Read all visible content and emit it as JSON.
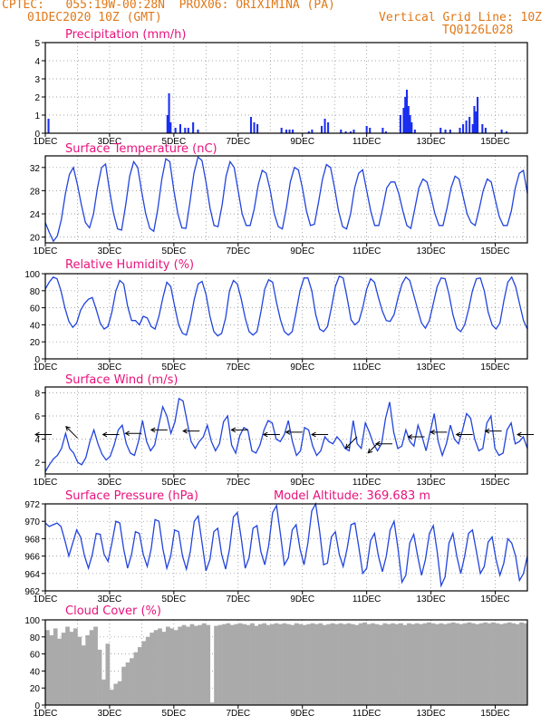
{
  "header": {
    "line1": "CPTEC:   055:19W-00:28N  PROX06: ORIXIMINA (PA)",
    "line2_left": "01DEC2020 10Z (GMT)",
    "line2_right": "Vertical Grid Line: 10Z",
    "line3_right": "TQ0126L028"
  },
  "colors": {
    "header": "#e07818",
    "title": "#e8127c",
    "line": "#2244dd",
    "bar": "#1a2ef0",
    "cloud": "#aaaaaa",
    "grid": "#888888"
  },
  "x_ticks": [
    "1DEC",
    "3DEC",
    "5DEC",
    "7DEC",
    "9DEC",
    "11DEC",
    "13DEC",
    "15DEC"
  ],
  "chart_data": [
    {
      "type": "bar",
      "title": "Precipitation (mm/h)",
      "ylim": [
        0,
        5
      ],
      "yticks": [
        0,
        1,
        2,
        3,
        4,
        5
      ],
      "series": [
        {
          "x": [
            0.1,
            3.8,
            3.85,
            3.9,
            4.05,
            4.2,
            4.35,
            4.45,
            4.6,
            4.75,
            6.4,
            6.5,
            6.6,
            7.35,
            7.5,
            7.6,
            7.7,
            8.2,
            8.3,
            8.6,
            8.7,
            8.8,
            9.2,
            9.35,
            9.5,
            9.6,
            10.0,
            10.1,
            10.5,
            10.6,
            11.05,
            11.15,
            11.2,
            11.25,
            11.3,
            11.35,
            11.4,
            11.5,
            12.3,
            12.45,
            12.6,
            12.9,
            13.0,
            13.1,
            13.2,
            13.3,
            13.35,
            13.4,
            13.45,
            13.6,
            13.7,
            14.2,
            14.35
          ],
          "values": [
            0.8,
            1.0,
            2.2,
            0.6,
            0.3,
            0.5,
            0.3,
            0.3,
            0.6,
            0.2,
            0.9,
            0.6,
            0.5,
            0.3,
            0.2,
            0.2,
            0.2,
            0.1,
            0.2,
            0.4,
            0.8,
            0.6,
            0.2,
            0.1,
            0.1,
            0.2,
            0.4,
            0.3,
            0.3,
            0.1,
            1.0,
            1.4,
            2.0,
            2.4,
            1.5,
            1.0,
            0.6,
            0.2,
            0.3,
            0.2,
            0.2,
            0.3,
            0.5,
            0.7,
            0.9,
            0.5,
            1.5,
            1.2,
            2.0,
            0.5,
            0.3,
            0.2,
            0.1
          ]
        }
      ]
    },
    {
      "type": "line",
      "title": "Surface Temperature (nC)",
      "ylim": [
        19,
        34
      ],
      "yticks": [
        20,
        24,
        28,
        32
      ],
      "series": [
        {
          "values": [
            22.5,
            20.8,
            19.3,
            20.2,
            23.0,
            27.5,
            30.8,
            32.0,
            29.0,
            25.5,
            22.5,
            21.6,
            24.0,
            28.5,
            32.0,
            32.6,
            28.0,
            24.0,
            21.4,
            21.2,
            25.5,
            30.5,
            33.0,
            32.0,
            27.8,
            24.0,
            21.5,
            21.0,
            24.8,
            30.0,
            33.5,
            33.0,
            28.0,
            24.0,
            21.6,
            21.5,
            26.0,
            31.0,
            33.8,
            33.2,
            29.5,
            25.0,
            22.0,
            21.8,
            25.5,
            30.5,
            33.0,
            32.0,
            28.0,
            24.0,
            22.0,
            22.0,
            24.8,
            29.0,
            31.5,
            31.0,
            28.0,
            24.0,
            21.8,
            21.4,
            25.0,
            29.5,
            32.0,
            31.6,
            28.5,
            24.5,
            22.0,
            22.2,
            26.0,
            30.0,
            32.5,
            32.0,
            28.5,
            24.5,
            21.8,
            21.4,
            24.0,
            28.5,
            31.0,
            31.6,
            28.0,
            24.5,
            22.0,
            22.0,
            25.0,
            28.5,
            29.5,
            29.5,
            27.5,
            24.5,
            22.0,
            21.5,
            25.0,
            28.5,
            30.0,
            29.5,
            27.0,
            24.0,
            22.0,
            22.0,
            25.0,
            28.5,
            30.5,
            30.0,
            27.0,
            24.0,
            22.5,
            22.0,
            24.8,
            28.0,
            30.0,
            29.5,
            26.5,
            23.5,
            22.0,
            22.0,
            24.5,
            28.5,
            31.0,
            31.5,
            27.5
          ]
        }
      ]
    },
    {
      "type": "line",
      "title": "Relative Humidity (%)",
      "ylim": [
        0,
        100
      ],
      "yticks": [
        0,
        20,
        40,
        60,
        80,
        100
      ],
      "series": [
        {
          "values": [
            82,
            90,
            96,
            94,
            80,
            60,
            44,
            37,
            42,
            57,
            65,
            70,
            72,
            58,
            42,
            35,
            38,
            55,
            80,
            92,
            88,
            62,
            45,
            45,
            40,
            50,
            48,
            38,
            35,
            50,
            72,
            90,
            85,
            62,
            40,
            30,
            28,
            45,
            70,
            88,
            91,
            76,
            50,
            32,
            27,
            30,
            48,
            80,
            92,
            88,
            70,
            48,
            32,
            28,
            32,
            55,
            82,
            93,
            90,
            66,
            46,
            32,
            28,
            32,
            55,
            80,
            95,
            95,
            80,
            52,
            35,
            32,
            38,
            60,
            85,
            97,
            95,
            72,
            46,
            40,
            44,
            60,
            82,
            94,
            90,
            72,
            56,
            45,
            44,
            52,
            72,
            88,
            96,
            92,
            75,
            58,
            42,
            36,
            45,
            65,
            85,
            95,
            94,
            76,
            52,
            36,
            32,
            40,
            58,
            80,
            94,
            95,
            80,
            55,
            40,
            35,
            42,
            68,
            90,
            96,
            85,
            65,
            45,
            35
          ]
        }
      ]
    },
    {
      "type": "line",
      "title": "Surface Wind (m/s)",
      "ylim": [
        1,
        8.5
      ],
      "yticks": [
        2,
        4,
        6,
        8
      ],
      "series": [
        {
          "values": [
            1.2,
            1.8,
            2.3,
            2.6,
            3.2,
            4.5,
            3.2,
            2.8,
            2.0,
            1.8,
            2.4,
            3.8,
            4.8,
            3.6,
            2.7,
            2.2,
            2.5,
            3.5,
            4.8,
            5.2,
            3.6,
            2.8,
            2.6,
            3.8,
            5.6,
            3.8,
            3.0,
            3.5,
            5.2,
            6.8,
            6.0,
            4.5,
            5.5,
            7.5,
            7.3,
            5.5,
            3.8,
            3.2,
            3.8,
            4.2,
            5.2,
            3.8,
            3.0,
            3.6,
            5.5,
            6.0,
            3.5,
            2.8,
            4.3,
            5.0,
            4.8,
            3.0,
            2.8,
            3.5,
            4.8,
            5.6,
            5.4,
            4.0,
            3.8,
            4.4,
            5.6,
            3.8,
            2.6,
            3.0,
            5.0,
            4.8,
            3.4,
            2.6,
            3.0,
            4.2,
            3.8,
            3.6,
            4.2,
            3.8,
            3.2,
            3.0,
            5.6,
            3.6,
            3.2,
            5.4,
            4.6,
            3.6,
            3.0,
            3.6,
            5.8,
            7.2,
            4.6,
            3.2,
            3.4,
            4.8,
            3.8,
            3.4,
            5.2,
            4.2,
            3.0,
            4.6,
            6.2,
            3.8,
            2.6,
            3.6,
            5.2,
            4.0,
            3.6,
            4.8,
            6.2,
            5.8,
            4.0,
            3.0,
            3.2,
            5.4,
            6.0,
            3.2,
            2.6,
            2.8,
            4.8,
            5.4,
            3.6,
            3.8,
            4.2,
            3.2
          ]
        }
      ],
      "arrows": [
        {
          "day": 0.2,
          "speed": 4.4,
          "dir": "W"
        },
        {
          "day": 1.0,
          "speed": 4.1,
          "dir": "NW"
        },
        {
          "day": 2.3,
          "speed": 4.4,
          "dir": "W"
        },
        {
          "day": 3.0,
          "speed": 4.5,
          "dir": "W"
        },
        {
          "day": 3.8,
          "speed": 4.8,
          "dir": "W"
        },
        {
          "day": 4.8,
          "speed": 4.7,
          "dir": "W"
        },
        {
          "day": 6.3,
          "speed": 4.8,
          "dir": "W"
        },
        {
          "day": 7.3,
          "speed": 4.4,
          "dir": "W"
        },
        {
          "day": 8.0,
          "speed": 4.6,
          "dir": "W"
        },
        {
          "day": 8.8,
          "speed": 4.4,
          "dir": "W"
        },
        {
          "day": 9.7,
          "speed": 4.2,
          "dir": "SW"
        },
        {
          "day": 10.4,
          "speed": 3.8,
          "dir": "SW"
        },
        {
          "day": 10.8,
          "speed": 3.6,
          "dir": "W"
        },
        {
          "day": 11.8,
          "speed": 4.2,
          "dir": "W"
        },
        {
          "day": 12.5,
          "speed": 4.6,
          "dir": "W"
        },
        {
          "day": 13.3,
          "speed": 4.4,
          "dir": "W"
        },
        {
          "day": 14.2,
          "speed": 4.7,
          "dir": "W"
        },
        {
          "day": 15.2,
          "speed": 4.4,
          "dir": "W"
        }
      ]
    },
    {
      "type": "line",
      "title": "Surface Pressure (hPa)",
      "annotation": "Model Altitude: 369.683 m",
      "ylim": [
        962,
        972
      ],
      "yticks": [
        962,
        964,
        966,
        968,
        970,
        972
      ],
      "series": [
        {
          "values": [
            969.8,
            969.4,
            969.6,
            969.8,
            969.4,
            967.8,
            966.0,
            967.5,
            969.0,
            968.2,
            966.0,
            964.6,
            966.2,
            968.6,
            968.5,
            966.2,
            965.4,
            967.5,
            970.0,
            969.8,
            966.8,
            964.6,
            966.2,
            968.8,
            968.6,
            966.2,
            964.8,
            966.8,
            970.2,
            970.0,
            966.8,
            964.6,
            966.0,
            969.0,
            968.8,
            966.0,
            964.5,
            966.5,
            970.0,
            970.6,
            967.5,
            964.3,
            965.6,
            968.8,
            969.2,
            966.2,
            964.5,
            966.8,
            970.5,
            971.0,
            968.0,
            964.6,
            965.8,
            969.2,
            969.5,
            966.5,
            965.0,
            967.2,
            971.0,
            971.8,
            968.5,
            965.0,
            965.8,
            969.0,
            969.6,
            966.8,
            965.0,
            967.5,
            971.2,
            972.0,
            968.8,
            965.0,
            965.2,
            968.2,
            968.8,
            966.2,
            964.8,
            966.8,
            969.6,
            969.8,
            967.0,
            964.0,
            964.6,
            967.8,
            968.6,
            966.0,
            964.2,
            966.0,
            969.0,
            970.0,
            966.8,
            963.0,
            963.8,
            967.5,
            968.5,
            966.0,
            963.8,
            965.6,
            968.6,
            969.5,
            966.5,
            962.6,
            963.6,
            967.5,
            968.6,
            966.0,
            964.0,
            966.0,
            968.6,
            969.0,
            966.5,
            964.0,
            964.8,
            967.6,
            968.2,
            965.6,
            963.8,
            965.2,
            968.0,
            967.5,
            966.0,
            963.2,
            964.0,
            966.0
          ]
        }
      ]
    },
    {
      "type": "area",
      "title": "Cloud Cover (%)",
      "ylim": [
        0,
        100
      ],
      "yticks": [
        0,
        20,
        40,
        60,
        80,
        100
      ],
      "series": [
        {
          "values": [
            88,
            82,
            90,
            78,
            85,
            92,
            86,
            90,
            80,
            70,
            82,
            88,
            92,
            65,
            30,
            72,
            18,
            25,
            28,
            45,
            50,
            55,
            62,
            68,
            75,
            80,
            85,
            88,
            90,
            86,
            92,
            90,
            88,
            92,
            94,
            92,
            95,
            93,
            94,
            96,
            94,
            3,
            93,
            94,
            95,
            96,
            94,
            95,
            96,
            95,
            94,
            96,
            93,
            95,
            96,
            94,
            95,
            96,
            95,
            96,
            95,
            94,
            96,
            95,
            94,
            95,
            96,
            95,
            96,
            94,
            95,
            96,
            95,
            96,
            95,
            96,
            95,
            94,
            96,
            97,
            95,
            96,
            95,
            94,
            96,
            95,
            96,
            95,
            96,
            94,
            96,
            95,
            96,
            95,
            96,
            97,
            96,
            95,
            96,
            95,
            96,
            97,
            96,
            95,
            96,
            97,
            96,
            95,
            96,
            97,
            96,
            97,
            96,
            95,
            96,
            97,
            96,
            95,
            97,
            96
          ]
        }
      ]
    }
  ]
}
